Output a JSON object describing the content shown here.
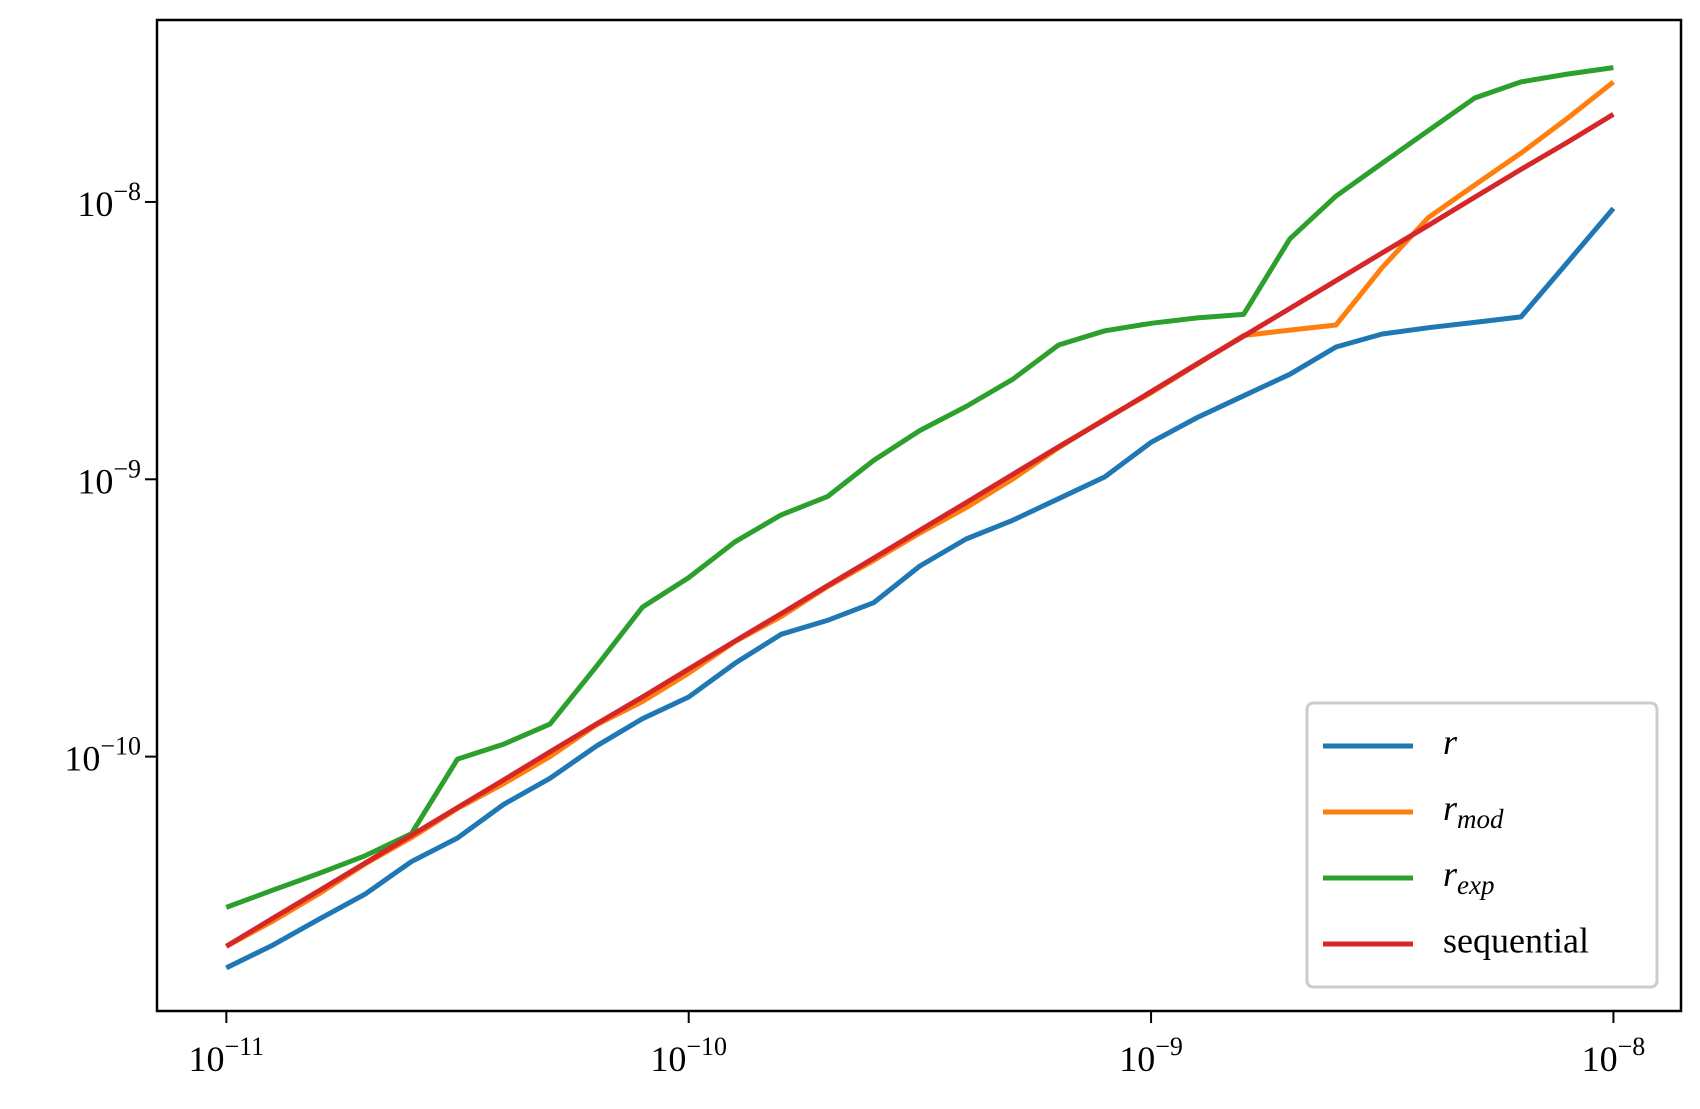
{
  "chart_data": {
    "type": "line",
    "xscale": "log",
    "yscale": "log",
    "xlim": [
      7.08e-12,
      1.4e-08
    ],
    "ylim": [
      1.21e-11,
      4.53e-08
    ],
    "xticks": [
      {
        "value": 1e-11,
        "label": "10−11"
      },
      {
        "value": 1e-10,
        "label": "10−10"
      },
      {
        "value": 1e-09,
        "label": "10−9"
      },
      {
        "value": 1e-08,
        "label": "10−8"
      }
    ],
    "yticks": [
      {
        "value": 1e-10,
        "label": "10−10"
      },
      {
        "value": 1e-09,
        "label": "10−9"
      },
      {
        "value": 1e-08,
        "label": "10−8"
      }
    ],
    "legend": "lower right",
    "x": [
      1e-11,
      1.259e-11,
      1.585e-11,
      1.995e-11,
      2.512e-11,
      3.162e-11,
      3.981e-11,
      5.012e-11,
      6.31e-11,
      7.943e-11,
      1e-10,
      1.259e-10,
      1.585e-10,
      1.995e-10,
      2.512e-10,
      3.162e-10,
      3.981e-10,
      5.012e-10,
      6.31e-10,
      7.943e-10,
      1e-09,
      1.259e-09,
      1.585e-09,
      1.995e-09,
      2.512e-09,
      3.162e-09,
      3.981e-09,
      5.012e-09,
      6.31e-09,
      7.943e-09,
      1e-08
    ],
    "series": [
      {
        "name": "r",
        "color": "#1f77b4",
        "values": [
          1.73e-11,
          2.09e-11,
          2.59e-11,
          3.19e-11,
          4.18e-11,
          5.09e-11,
          6.73e-11,
          8.35e-11,
          1.09e-10,
          1.37e-10,
          1.64e-10,
          2.17e-10,
          2.76e-10,
          3.1e-10,
          3.59e-10,
          4.87e-10,
          6.09e-10,
          7.11e-10,
          8.51e-10,
          1.02e-09,
          1.36e-09,
          1.67e-09,
          2e-09,
          2.39e-09,
          3e-09,
          3.34e-09,
          3.52e-09,
          3.68e-09,
          3.85e-09,
          6.04e-09,
          9.48e-09
        ]
      },
      {
        "name": "rmod",
        "color": "#ff7f0e",
        "values": [
          2.07e-11,
          2.55e-11,
          3.2e-11,
          4.1e-11,
          5.1e-11,
          6.5e-11,
          8e-11,
          1e-10,
          1.3e-10,
          1.58e-10,
          2e-10,
          2.6e-10,
          3.2e-10,
          4.1e-10,
          5.1e-10,
          6.4e-10,
          7.9e-10,
          1e-09,
          1.3e-09,
          1.65e-09,
          2.05e-09,
          2.6e-09,
          3.3e-09,
          3.45e-09,
          3.6e-09,
          5.8e-09,
          8.8e-09,
          1.15e-08,
          1.5e-08,
          2e-08,
          2.71e-08
        ]
      },
      {
        "name": "rexp",
        "color": "#2ca02c",
        "values": [
          2.86e-11,
          3.3e-11,
          3.79e-11,
          4.39e-11,
          5.27e-11,
          9.8e-11,
          1.11e-10,
          1.31e-10,
          2.11e-10,
          3.46e-10,
          4.42e-10,
          5.95e-10,
          7.44e-10,
          8.66e-10,
          1.17e-09,
          1.5e-09,
          1.83e-09,
          2.29e-09,
          3.05e-09,
          3.43e-09,
          3.65e-09,
          3.82e-09,
          3.93e-09,
          7.36e-09,
          1.05e-08,
          1.38e-08,
          1.81e-08,
          2.37e-08,
          2.71e-08,
          2.89e-08,
          3.05e-08
        ]
      },
      {
        "name": "sequential",
        "color": "#d62728",
        "values": [
          2.07e-11,
          2.61e-11,
          3.28e-11,
          4.13e-11,
          5.2e-11,
          6.55e-11,
          8.24e-11,
          1.04e-10,
          1.31e-10,
          1.64e-10,
          2.07e-10,
          2.61e-10,
          3.28e-10,
          4.13e-10,
          5.2e-10,
          6.55e-10,
          8.24e-10,
          1.04e-09,
          1.31e-09,
          1.64e-09,
          2.07e-09,
          2.61e-09,
          3.28e-09,
          4.13e-09,
          5.2e-09,
          6.55e-09,
          8.24e-09,
          1.04e-08,
          1.31e-08,
          1.64e-08,
          2.07e-08
        ]
      }
    ]
  }
}
